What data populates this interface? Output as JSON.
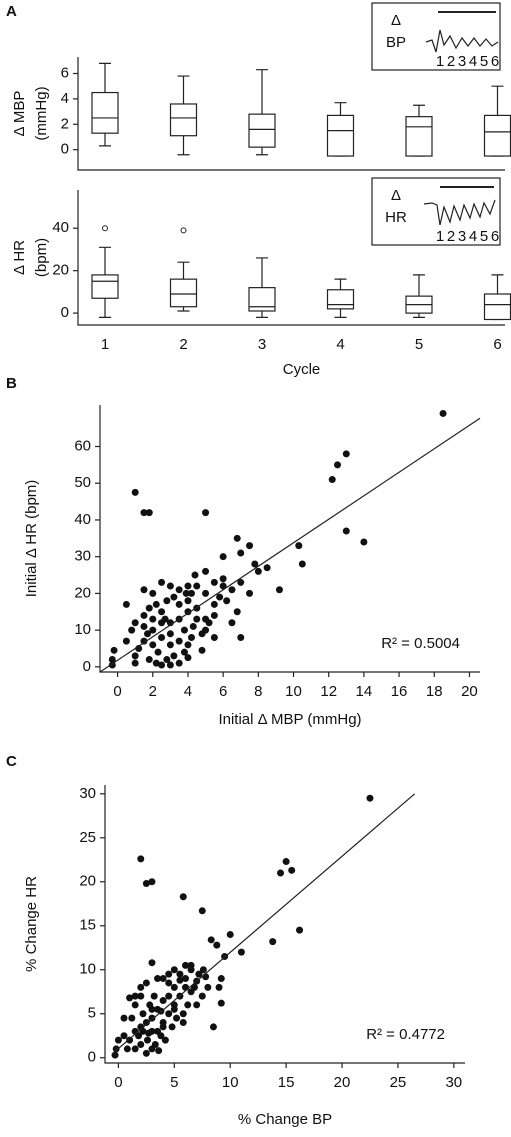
{
  "chart_data": [
    {
      "type": "box",
      "panel": "A",
      "ylabel": [
        "Δ MBP",
        "(mmHg)"
      ],
      "ylim": [
        -1.6,
        7.3
      ],
      "yticks": [
        0,
        2,
        4,
        6
      ],
      "whisker_low": [
        0.3,
        -0.4,
        -0.4,
        -0.5,
        -0.5,
        -0.5
      ],
      "q1": [
        1.3,
        1.1,
        0.2,
        -0.5,
        -0.5,
        -0.5
      ],
      "median": [
        2.5,
        2.5,
        1.6,
        1.5,
        1.8,
        1.4
      ],
      "q3": [
        4.5,
        3.6,
        2.8,
        2.7,
        2.6,
        2.7
      ],
      "whisker_high": [
        6.8,
        5.8,
        6.3,
        3.7,
        3.5,
        5.0
      ],
      "inset": {
        "label": [
          "Δ",
          "BP"
        ],
        "cycles": [
          "1",
          "2",
          "3",
          "4",
          "5",
          "6"
        ]
      }
    },
    {
      "type": "box",
      "ylabel": [
        "Δ HR",
        "(bpm)"
      ],
      "xlabel": "Cycle",
      "categories": [
        "1",
        "2",
        "3",
        "4",
        "5",
        "6"
      ],
      "ylim": [
        -5.6,
        58
      ],
      "yticks": [
        0,
        20,
        40
      ],
      "whisker_low": [
        -2,
        1,
        -2,
        -2,
        -2,
        -3
      ],
      "q1": [
        7,
        3,
        1,
        2,
        0,
        -3
      ],
      "median": [
        15,
        9,
        3,
        4,
        4,
        4
      ],
      "q3": [
        18,
        16,
        12,
        11,
        8,
        9
      ],
      "whisker_high": [
        31,
        24,
        26,
        16,
        18,
        18
      ],
      "outliers": [
        [
          40
        ],
        [
          39
        ],
        [],
        [],
        [],
        []
      ],
      "inset": {
        "label": [
          "Δ",
          "HR"
        ],
        "cycles": [
          "1",
          "2",
          "3",
          "4",
          "5",
          "6"
        ]
      }
    },
    {
      "type": "scatter",
      "panel": "B",
      "xlabel": "Initial Δ MBP (mmHg)",
      "ylabel": "Initial Δ HR (bpm)",
      "xlim": [
        -1,
        20.6
      ],
      "ylim": [
        -1.4,
        71.3
      ],
      "xticks": [
        0,
        2,
        4,
        6,
        8,
        10,
        12,
        14,
        16,
        18,
        20
      ],
      "yticks": [
        0,
        10,
        20,
        30,
        40,
        50,
        60
      ],
      "annotation": "R² = 0.5004",
      "fit": {
        "x": [
          -1,
          20.6
        ],
        "y": [
          -1.4,
          67.7
        ]
      },
      "x": [
        18.5,
        13,
        12.5,
        12.2,
        13,
        14,
        10.3,
        10.5,
        8.5,
        9.2,
        1,
        1.5,
        1.8,
        5,
        6.8,
        7.5,
        7,
        6,
        7.8,
        5.5,
        6,
        5,
        4.5,
        4,
        3.5,
        3,
        2.5,
        2,
        1.5,
        0.5,
        1,
        0.5,
        -0.2,
        -0.3,
        -0.3,
        1,
        1,
        1.8,
        2.2,
        2.5,
        3,
        3.5,
        4,
        4.8,
        5.5,
        7,
        6.8,
        7.5,
        6.5,
        5.5,
        5.2,
        5,
        4.5,
        4,
        4,
        3.5,
        3.5,
        3,
        3,
        3,
        2.5,
        2.5,
        2.5,
        2,
        2,
        2,
        1.5,
        1.5,
        1.5,
        1.2,
        0.8,
        2.8,
        3.2,
        4.2,
        4.5,
        5,
        5.8,
        6.2,
        6,
        7,
        4.2,
        3.8,
        3.2,
        2.8,
        5,
        4.8,
        4.3,
        3.8,
        2.2,
        1.8,
        3.5,
        2.3,
        4,
        6.5,
        5.5,
        8,
        4.4,
        3.9,
        2.7,
        1.7
      ],
      "values": [
        69,
        58,
        55,
        51,
        37,
        34,
        33,
        28,
        27,
        21,
        47.5,
        42,
        42,
        42,
        35,
        33,
        31,
        30,
        28,
        23,
        24,
        26,
        22,
        22,
        21,
        22,
        23,
        20,
        21,
        17,
        12,
        7,
        4.5,
        2,
        0.5,
        1,
        3,
        2,
        1,
        0.5,
        0.5,
        1,
        2.5,
        4.5,
        8,
        8,
        15,
        20,
        21,
        17,
        12,
        10,
        13,
        15,
        18,
        17,
        13,
        12,
        9,
        6,
        8,
        12,
        15,
        10,
        13,
        6,
        11,
        14,
        7,
        5,
        10,
        18,
        19,
        20,
        16,
        20,
        19,
        18,
        22,
        23,
        8,
        4,
        3,
        2,
        13,
        9,
        11,
        10,
        17,
        16,
        7,
        4,
        6,
        12,
        14,
        26,
        25,
        20,
        13,
        9
      ]
    },
    {
      "type": "scatter",
      "panel": "C",
      "xlabel": "% Change BP",
      "ylabel": "% Change HR",
      "xlim": [
        -1.2,
        31
      ],
      "ylim": [
        -0.6,
        31
      ],
      "xticks": [
        0,
        5,
        10,
        15,
        20,
        25,
        30
      ],
      "yticks": [
        0,
        5,
        10,
        15,
        20,
        25,
        30
      ],
      "annotation": "R² = 0.4772",
      "fit": {
        "x": [
          -0.5,
          26.5
        ],
        "y": [
          0.5,
          30
        ]
      },
      "x": [
        22.5,
        15,
        15.5,
        14.5,
        13.8,
        16.2,
        10,
        11,
        9.5,
        9.2,
        9,
        9.2,
        8.5,
        8.8,
        8.3,
        7.5,
        5.8,
        2,
        2.5,
        3,
        7.6,
        7.2,
        6.5,
        6,
        5.5,
        5,
        4.5,
        4,
        3.5,
        3,
        2.5,
        2,
        1.5,
        1,
        0.5,
        0,
        -0.2,
        -0.3,
        0.5,
        1,
        1.5,
        2,
        2.5,
        3,
        3.5,
        4,
        4.5,
        5,
        5.5,
        6,
        6.5,
        7,
        7.5,
        8,
        6,
        5,
        4.5,
        4,
        3.5,
        3,
        2.5,
        2,
        1.5,
        2.8,
        3.2,
        4.2,
        3.8,
        4.8,
        5.2,
        5.8,
        6.2,
        2.2,
        1.8,
        3,
        2.6,
        3.3,
        4.5,
        5.5,
        6.8,
        7.8,
        1.2,
        0.8,
        3.6,
        2.2,
        5,
        6.5,
        4,
        3,
        2,
        1.5,
        7,
        5.8,
        2.7,
        3.8
      ],
      "values": [
        29.5,
        22.3,
        21.3,
        21,
        13.2,
        14.5,
        14,
        12,
        11.5,
        9,
        8,
        6.2,
        3.5,
        12.8,
        13.4,
        16.7,
        18.3,
        22.6,
        19.8,
        20,
        10,
        9.5,
        10.5,
        10.5,
        9.5,
        10,
        9.5,
        9,
        9,
        10.8,
        8.5,
        8,
        7,
        6.8,
        4.5,
        2,
        1,
        0.3,
        2.5,
        2,
        1,
        1.5,
        0.5,
        1,
        3,
        4,
        5,
        6,
        7,
        8,
        7.5,
        6,
        7,
        8,
        9,
        8,
        7,
        6.5,
        5.5,
        4.5,
        4,
        3.5,
        3,
        6,
        7,
        2,
        2.5,
        3.5,
        4.5,
        5,
        6,
        5,
        2.5,
        3,
        2,
        1.5,
        8.5,
        8.8,
        8,
        9.2,
        4.5,
        1,
        0.8,
        3,
        5.5,
        10,
        3.5,
        5.5,
        7,
        6,
        8.7,
        4,
        2.8,
        5.3
      ]
    }
  ]
}
